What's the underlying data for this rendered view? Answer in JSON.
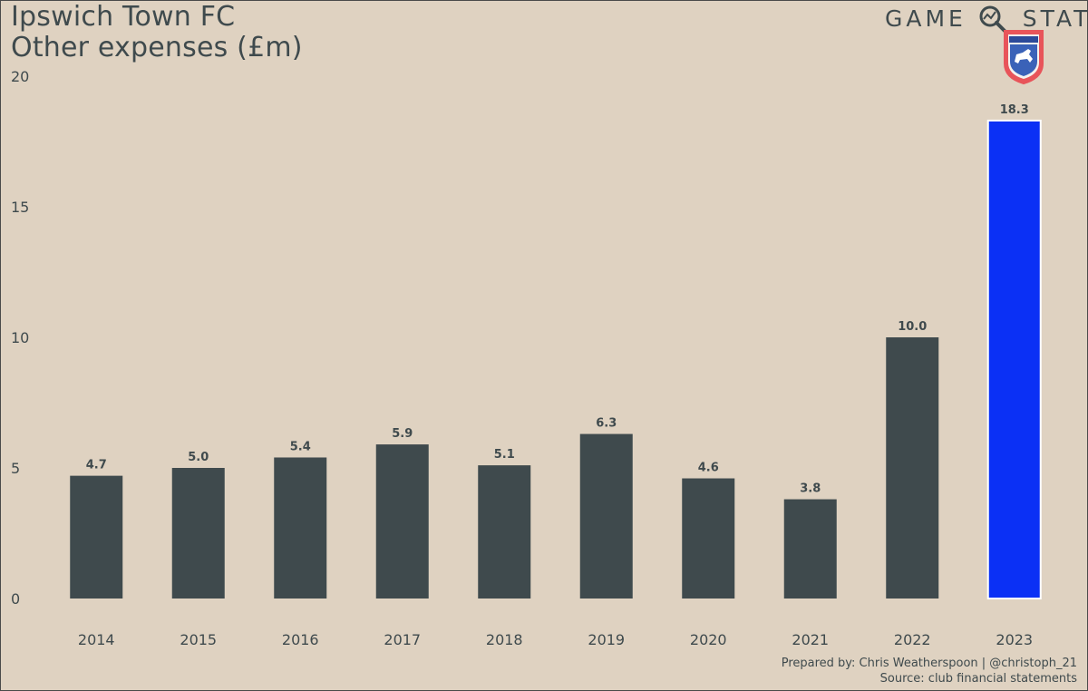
{
  "header": {
    "title_line1": "Ipswich Town FC",
    "title_line2": "Other expenses (£m)"
  },
  "brand": {
    "word_left": "GAME",
    "word_right": "STATE",
    "icon": "magnifier-icon",
    "crest_icon": "ipswich-town-crest-icon"
  },
  "footer": {
    "prepared_by": "Prepared by: Chris Weatherspoon | @christoph_21",
    "source": "Source: club financial statements"
  },
  "colors": {
    "background": "#dfd2c1",
    "bar": "#3f4a4d",
    "highlight_bar": "#0b30f5",
    "text": "#3f4a4d"
  },
  "chart_data": {
    "type": "bar",
    "categories": [
      "2014",
      "2015",
      "2016",
      "2017",
      "2018",
      "2019",
      "2020",
      "2021",
      "2022",
      "2023"
    ],
    "values": [
      4.7,
      5.0,
      5.4,
      5.9,
      5.1,
      6.3,
      4.6,
      3.8,
      10.0,
      18.3
    ],
    "data_labels": [
      "4.7",
      "5.0",
      "5.4",
      "5.9",
      "5.1",
      "6.3",
      "4.6",
      "3.8",
      "10.0",
      "18.3"
    ],
    "highlight_index": 9,
    "ylim": [
      0,
      20
    ],
    "yticks": [
      "0",
      "5",
      "10",
      "15",
      "20"
    ],
    "ytick_values": [
      0,
      5,
      10,
      15,
      20
    ],
    "grid": false,
    "legend": "none"
  }
}
